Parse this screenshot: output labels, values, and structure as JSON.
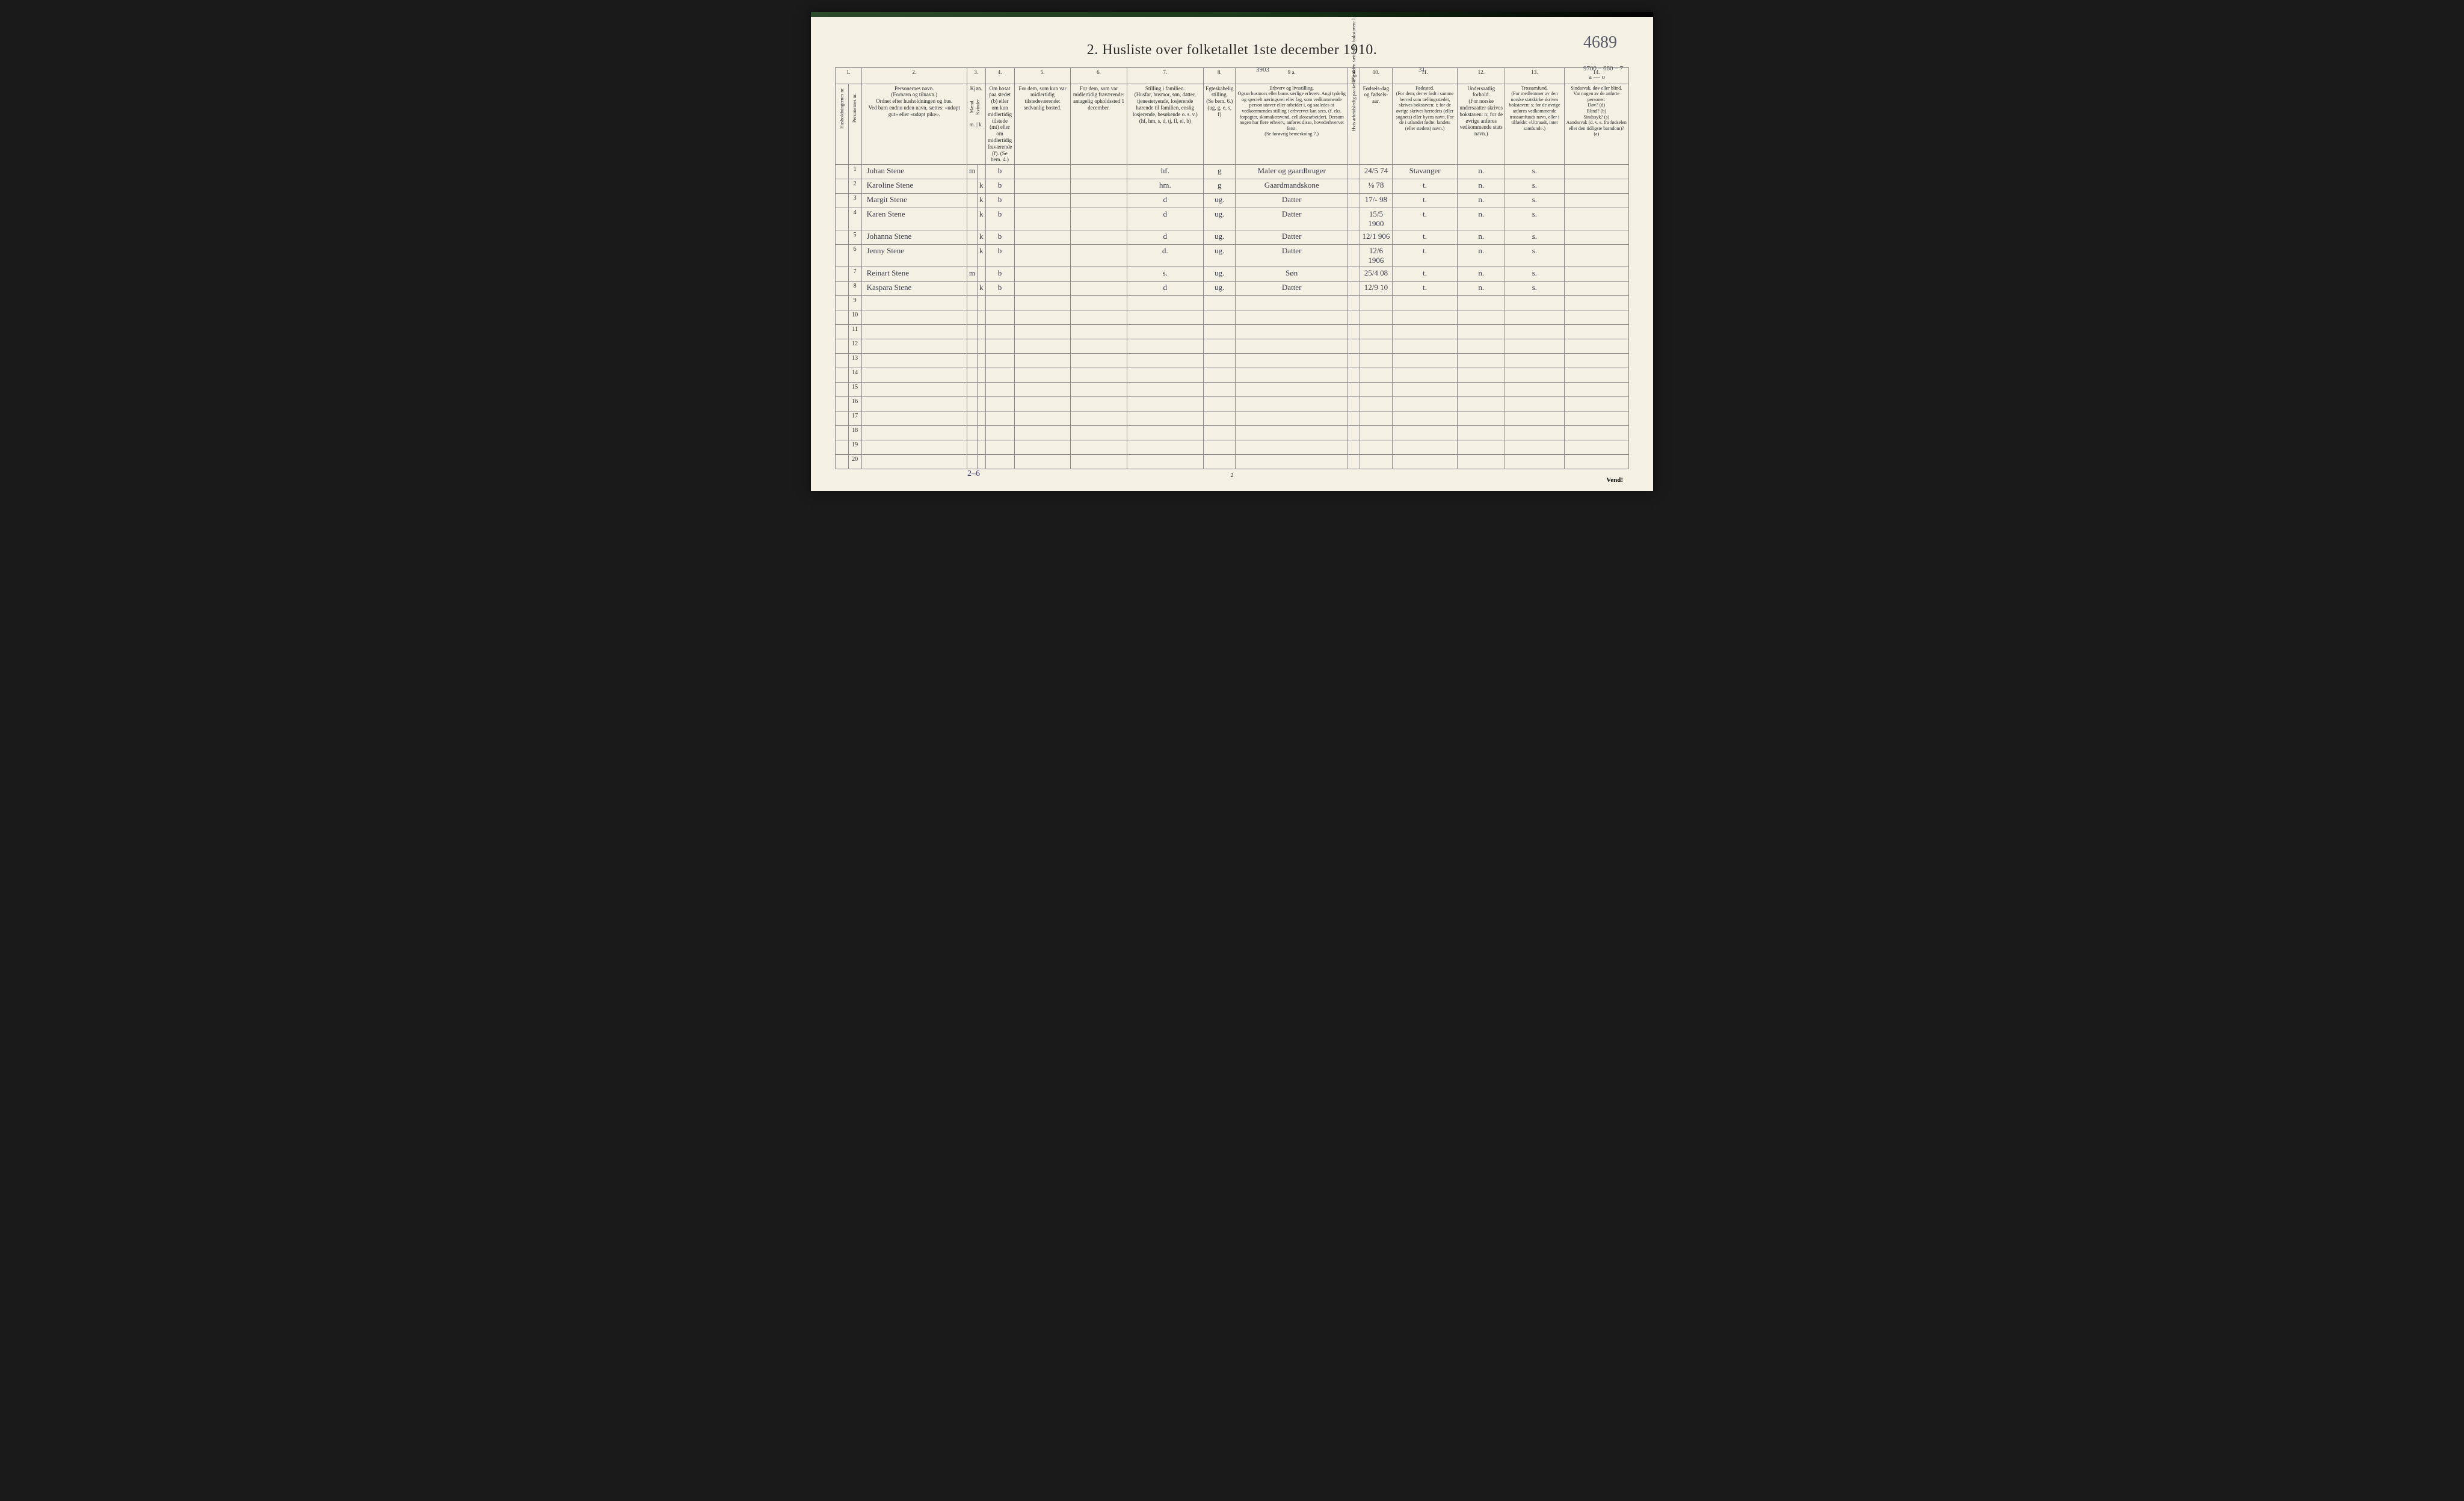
{
  "page": {
    "title": "2.  Husliste over folketallet 1ste december 1910.",
    "topright_handwritten": "4689",
    "footer_pagenum": "2",
    "vend": "Vend!",
    "bottom_handwritten": "2–6",
    "annotation_9a": "3903",
    "annotation_11": "31",
    "annotation_14": "9700 – 660 – 7",
    "annotation_14b": "a — o"
  },
  "colors": {
    "paper": "#f4f1e4",
    "ink": "#2a2a2a",
    "handwriting": "#3a3a4a",
    "rule": "#888"
  },
  "colnums": [
    "1.",
    "2.",
    "3.",
    "4.",
    "5.",
    "6.",
    "7.",
    "8.",
    "9 a.",
    "9 b.",
    "10.",
    "11.",
    "12.",
    "13.",
    "14."
  ],
  "headers": {
    "c1a": "Husholdningernes nr.",
    "c1b": "Personernes nr.",
    "c2": "Personernes navn.\n(Fornavn og tilnavn.)\nOrdnet efter husholdningen og hus.\nVed barn endnu uden navn, sættes: «udøpt gut» eller «udøpt pike».",
    "c3": "Kjøn.",
    "c3a": "Mænd.",
    "c3b": "Kvinder.",
    "c3_sub": "m. | k.",
    "c4": "Om bosat paa stedet (b) eller om kun midlertidig tilstede (mt) eller om midlertidig fraværende (f). (Se bem. 4.)",
    "c5": "For dem, som kun var midlertidig tilstedeværende:\nsedvanlig bosted.",
    "c6": "For dem, som var midlertidig fraværende:\nantagelig opholdssted 1 december.",
    "c7": "Stilling i familien.\n(Husfar, husmor, søn, datter, tjenestetyende, losjerende hørende til familien, enslig losjerende, besøkende o. s. v.)\n(hf, hm, s, d, tj, fl, el, b)",
    "c8": "Egteskabelig stilling.\n(Se bem. 6.)\n(ug, g, e, s, f)",
    "c9a": "Erhverv og livsstilling.\nOgsaa husmors eller barns særlige erhverv. Angi tydelig og specielt næringsvei eller fag, som vedkommende person utøver eller arbeider i, og saaledes at vedkommendes stilling i erhvervet kan sees, (f. eks. forpagter, skomakersvend, cellulosearbeider). Dersom nogen har flere erhverv, anføres disse, hovederhvervet først.\n(Se forøvrig bemerkning 7.)",
    "c9b": "Hvis arbeidsledig paa tællingstiden sættes her bokstaven: l.",
    "c10": "Fødsels-dag og fødsels-aar.",
    "c11": "Fødested.\n(For dem, der er født i samme herred som tællingsstedet, skrives bokstaven: t; for de øvrige skrives herredets (eller sognets) eller byens navn. For de i utlandet fødte: landets (eller stedets) navn.)",
    "c12": "Undersaatlig forhold.\n(For norske undersaatter skrives bokstaven: n; for de øvrige anføres vedkommende stats navn.)",
    "c13": "Trossamfund.\n(For medlemmer av den norske statskirke skrives bokstaven: s; for de øvrige anføres vedkommende trossamfunds navn, eller i tilfælde: «Uttraadt, intet samfund».)",
    "c14": "Sindssvak, døv eller blind.\nVar nogen av de anførte personer:\nDøv?    (d)\nBlind?   (b)\nSindssyk? (s)\nAandssvak (d. v. s. fra fødselen eller den tidligste barndom)? (a)"
  },
  "rows": [
    {
      "n": "1",
      "name": "Johan Stene",
      "sex": "m",
      "bosat": "b",
      "stilling": "hf.",
      "egt": "g",
      "erhverv": "Maler og gaardbruger",
      "fdato": "24/5 74",
      "fsted": "Stavanger",
      "und": "n.",
      "tros": "s."
    },
    {
      "n": "2",
      "name": "Karoline Stene",
      "sex": "k",
      "bosat": "b",
      "stilling": "hm.",
      "egt": "g",
      "erhverv": "Gaardmandskone",
      "fdato": "⅛ 78",
      "fsted": "t.",
      "und": "n.",
      "tros": "s."
    },
    {
      "n": "3",
      "name": "Margit Stene",
      "sex": "k",
      "bosat": "b",
      "stilling": "d",
      "egt": "ug.",
      "erhverv": "Datter",
      "fdato": "17/- 98",
      "fsted": "t.",
      "und": "n.",
      "tros": "s."
    },
    {
      "n": "4",
      "name": "Karen Stene",
      "sex": "k",
      "bosat": "b",
      "stilling": "d",
      "egt": "ug.",
      "erhverv": "Datter",
      "fdato": "15/5 1900",
      "fsted": "t.",
      "und": "n.",
      "tros": "s."
    },
    {
      "n": "5",
      "name": "Johanna Stene",
      "sex": "k",
      "bosat": "b",
      "stilling": "d",
      "egt": "ug.",
      "erhverv": "Datter",
      "fdato": "12/1 906",
      "fsted": "t.",
      "und": "n.",
      "tros": "s."
    },
    {
      "n": "6",
      "name": "Jenny Stene",
      "sex": "k",
      "bosat": "b",
      "stilling": "d.",
      "egt": "ug.",
      "erhverv": "Datter",
      "fdato": "12/6 1906",
      "fsted": "t.",
      "und": "n.",
      "tros": "s."
    },
    {
      "n": "7",
      "name": "Reinart Stene",
      "sex": "m",
      "bosat": "b",
      "stilling": "s.",
      "egt": "ug.",
      "erhverv": "Søn",
      "fdato": "25/4 08",
      "fsted": "t.",
      "und": "n.",
      "tros": "s."
    },
    {
      "n": "8",
      "name": "Kaspara Stene",
      "sex": "k",
      "bosat": "b",
      "stilling": "d",
      "egt": "ug.",
      "erhverv": "Datter",
      "fdato": "12/9 10",
      "fsted": "t.",
      "und": "n.",
      "tros": "s."
    },
    {
      "n": "9"
    },
    {
      "n": "10"
    },
    {
      "n": "11"
    },
    {
      "n": "12"
    },
    {
      "n": "13"
    },
    {
      "n": "14"
    },
    {
      "n": "15"
    },
    {
      "n": "16"
    },
    {
      "n": "17"
    },
    {
      "n": "18"
    },
    {
      "n": "19"
    },
    {
      "n": "20"
    }
  ]
}
